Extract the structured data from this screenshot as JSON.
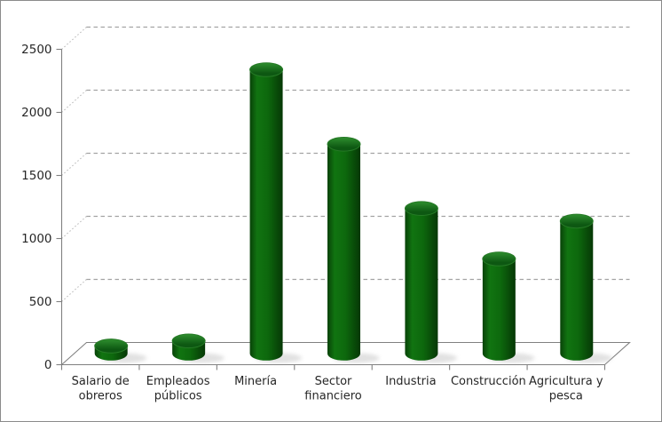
{
  "chart_data": {
    "type": "bar",
    "style": "3d-cylinder",
    "title": "",
    "xlabel": "",
    "ylabel": "",
    "legend": null,
    "grid": "dashed-horizontal-backplane",
    "categories": [
      "Salario de obreros",
      "Empleados públicos",
      "Minería",
      "Sector financiero",
      "Industria",
      "Construcción",
      "Agricultura y pesca"
    ],
    "category_label_lines": [
      [
        "Salario de",
        "obreros"
      ],
      [
        "Empleados",
        "públicos"
      ],
      [
        "Minería"
      ],
      [
        "Sector",
        "financiero"
      ],
      [
        "Industria"
      ],
      [
        "Construcción"
      ],
      [
        "Agricultura y",
        "pesca"
      ]
    ],
    "values": [
      60,
      100,
      2250,
      1660,
      1150,
      750,
      1050
    ],
    "y_ticks": [
      0,
      500,
      1000,
      1500,
      2000,
      2500
    ],
    "ylim": [
      0,
      2500
    ],
    "colors": {
      "bar_body_gradient": [
        "#084208",
        "#117411",
        "#0d680d",
        "#063806"
      ],
      "bar_top_gradient": [
        "#2f8f2f",
        "#0d5812"
      ],
      "bar_top_stroke": "#267a26",
      "axis_line": "#808080",
      "gridline": "#a3a3a3",
      "grid_diagonal": "#b3b3b3",
      "shadow": "#c9c9c9",
      "text": "#262626",
      "background": "#ffffff"
    }
  }
}
